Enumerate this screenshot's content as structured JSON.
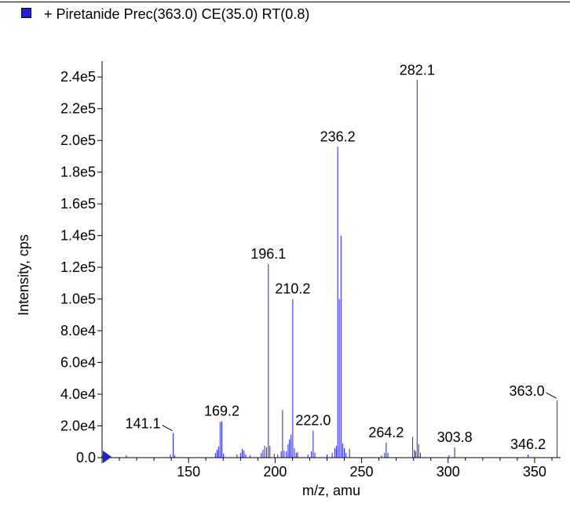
{
  "chart_data": {
    "type": "bar",
    "legend": {
      "label": "+ Piretanide Prec(363.0) CE(35.0) RT(0.8)",
      "color": "#1f1fe0",
      "placement": "top-left"
    },
    "xlabel": "m/z, amu",
    "ylabel": "Intensity, cps",
    "xlim": [
      100,
      365
    ],
    "ylim": [
      0,
      250000
    ],
    "xticks": [
      {
        "value": 150,
        "label": "150"
      },
      {
        "value": 200,
        "label": "200"
      },
      {
        "value": 250,
        "label": "250"
      },
      {
        "value": 300,
        "label": "300"
      },
      {
        "value": 350,
        "label": "350"
      }
    ],
    "yticks": [
      {
        "value": 0,
        "label": "0.0"
      },
      {
        "value": 20000,
        "label": "2.0e4"
      },
      {
        "value": 40000,
        "label": "4.0e4"
      },
      {
        "value": 60000,
        "label": "6.0e4"
      },
      {
        "value": 80000,
        "label": "8.0e4"
      },
      {
        "value": 100000,
        "label": "1.0e5"
      },
      {
        "value": 120000,
        "label": "1.2e5"
      },
      {
        "value": 140000,
        "label": "1.4e5"
      },
      {
        "value": 160000,
        "label": "1.6e5"
      },
      {
        "value": 180000,
        "label": "1.8e5"
      },
      {
        "value": 200000,
        "label": "2.0e5"
      },
      {
        "value": 220000,
        "label": "2.2e5"
      },
      {
        "value": 240000,
        "label": "2.4e5"
      }
    ],
    "grid": false,
    "series_color": "#2020e6",
    "peaks": [
      {
        "x": 100.5,
        "y": 1500
      },
      {
        "x": 114.0,
        "y": 1500
      },
      {
        "x": 139.5,
        "y": 2000
      },
      {
        "x": 141.1,
        "y": 15500
      },
      {
        "x": 142.0,
        "y": 1500
      },
      {
        "x": 165.5,
        "y": 3000
      },
      {
        "x": 166.5,
        "y": 5000
      },
      {
        "x": 167.3,
        "y": 7000
      },
      {
        "x": 168.2,
        "y": 22500
      },
      {
        "x": 169.2,
        "y": 23000
      },
      {
        "x": 170.2,
        "y": 2500
      },
      {
        "x": 178.0,
        "y": 2000
      },
      {
        "x": 180.0,
        "y": 3000
      },
      {
        "x": 181.0,
        "y": 5500
      },
      {
        "x": 182.0,
        "y": 4500
      },
      {
        "x": 183.0,
        "y": 2000
      },
      {
        "x": 185.5,
        "y": 1500
      },
      {
        "x": 192.0,
        "y": 3000
      },
      {
        "x": 193.0,
        "y": 5000
      },
      {
        "x": 194.0,
        "y": 7500
      },
      {
        "x": 195.1,
        "y": 6500
      },
      {
        "x": 196.1,
        "y": 122000
      },
      {
        "x": 197.0,
        "y": 7500
      },
      {
        "x": 199.5,
        "y": 2500
      },
      {
        "x": 201.5,
        "y": 2000
      },
      {
        "x": 203.5,
        "y": 4000
      },
      {
        "x": 204.3,
        "y": 30000
      },
      {
        "x": 205.2,
        "y": 4500
      },
      {
        "x": 206.5,
        "y": 4000
      },
      {
        "x": 207.5,
        "y": 8500
      },
      {
        "x": 208.3,
        "y": 11500
      },
      {
        "x": 209.2,
        "y": 14500
      },
      {
        "x": 210.2,
        "y": 100000
      },
      {
        "x": 211.2,
        "y": 6000
      },
      {
        "x": 212.2,
        "y": 3000
      },
      {
        "x": 213.0,
        "y": 3500
      },
      {
        "x": 219.0,
        "y": 2000
      },
      {
        "x": 221.0,
        "y": 4000
      },
      {
        "x": 222.0,
        "y": 17000
      },
      {
        "x": 223.0,
        "y": 3000
      },
      {
        "x": 230.0,
        "y": 2000
      },
      {
        "x": 233.0,
        "y": 3000
      },
      {
        "x": 234.5,
        "y": 6000
      },
      {
        "x": 235.4,
        "y": 7500
      },
      {
        "x": 236.2,
        "y": 196000
      },
      {
        "x": 237.1,
        "y": 100000
      },
      {
        "x": 238.1,
        "y": 140000
      },
      {
        "x": 239.0,
        "y": 9000
      },
      {
        "x": 240.0,
        "y": 6000
      },
      {
        "x": 241.0,
        "y": 3000
      },
      {
        "x": 243.0,
        "y": 5500
      },
      {
        "x": 261.5,
        "y": 1500
      },
      {
        "x": 263.3,
        "y": 3000
      },
      {
        "x": 264.2,
        "y": 9500
      },
      {
        "x": 265.2,
        "y": 3000
      },
      {
        "x": 279.5,
        "y": 13000
      },
      {
        "x": 280.5,
        "y": 5000
      },
      {
        "x": 281.2,
        "y": 4000
      },
      {
        "x": 282.1,
        "y": 238000
      },
      {
        "x": 283.0,
        "y": 8500
      },
      {
        "x": 284.0,
        "y": 3000
      },
      {
        "x": 300.5,
        "y": 1500
      },
      {
        "x": 303.8,
        "y": 6500
      },
      {
        "x": 346.2,
        "y": 2000
      },
      {
        "x": 363.0,
        "y": 36000
      }
    ],
    "annotations": [
      {
        "text": "141.1",
        "x": 141.1,
        "y": 15500
      },
      {
        "text": "169.2",
        "x": 169.2,
        "y": 23000
      },
      {
        "text": "196.1",
        "x": 196.1,
        "y": 122000
      },
      {
        "text": "210.2",
        "x": 210.2,
        "y": 100000
      },
      {
        "text": "222.0",
        "x": 222.0,
        "y": 17000
      },
      {
        "text": "236.2",
        "x": 236.2,
        "y": 196000
      },
      {
        "text": "264.2",
        "x": 264.2,
        "y": 9500
      },
      {
        "text": "282.1",
        "x": 282.1,
        "y": 238000
      },
      {
        "text": "303.8",
        "x": 303.8,
        "y": 6500
      },
      {
        "text": "346.2",
        "x": 346.2,
        "y": 2000
      },
      {
        "text": "363.0",
        "x": 363.0,
        "y": 36000
      }
    ]
  }
}
